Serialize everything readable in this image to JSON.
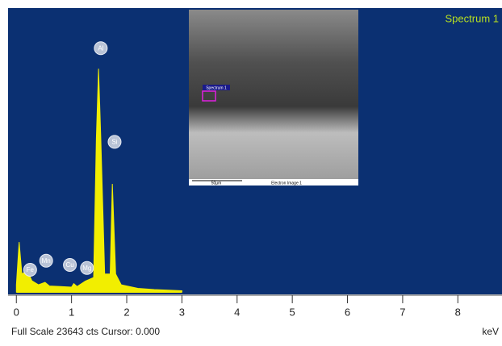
{
  "chart_data": {
    "type": "spectrum",
    "title": "Spectrum 1",
    "x_label": "keV",
    "footer": "Full Scale 23643 cts Cursor: 0.000",
    "color": "#f2ee00",
    "background": "#0b3072",
    "x": [
      0.0,
      0.05,
      0.1,
      0.2,
      0.28,
      0.4,
      0.52,
      0.6,
      0.8,
      1.0,
      1.04,
      1.1,
      1.25,
      1.4,
      1.45,
      1.49,
      1.53,
      1.6,
      1.7,
      1.74,
      1.8,
      1.9,
      2.2,
      2.5,
      3.0
    ],
    "values": [
      600,
      4160,
      1500,
      1800,
      940,
      600,
      800,
      500,
      450,
      400,
      700,
      450,
      900,
      1200,
      12800,
      18600,
      12800,
      1500,
      1500,
      9000,
      1500,
      600,
      300,
      200,
      100
    ],
    "annotations": [
      {
        "text": "Fe",
        "x": 0.25,
        "y": 1850
      },
      {
        "text": "Mn",
        "x": 0.54,
        "y": 2600
      },
      {
        "text": "Cu",
        "x": 0.97,
        "y": 2250
      },
      {
        "text": "Mg",
        "x": 1.28,
        "y": 2000
      },
      {
        "text": "Al",
        "x": 1.53,
        "y": 20300
      },
      {
        "text": "Si",
        "x": 1.78,
        "y": 12500
      }
    ],
    "xlim": [
      -0.15,
      8.8
    ],
    "ylim": [
      0,
      23643
    ],
    "xticks": [
      0,
      1,
      2,
      3,
      4,
      5,
      6,
      7,
      8
    ],
    "inset": {
      "spectrum_label": "Spectrum 1",
      "scale_label": "50µm",
      "image_label": "Electron Image 1"
    }
  }
}
